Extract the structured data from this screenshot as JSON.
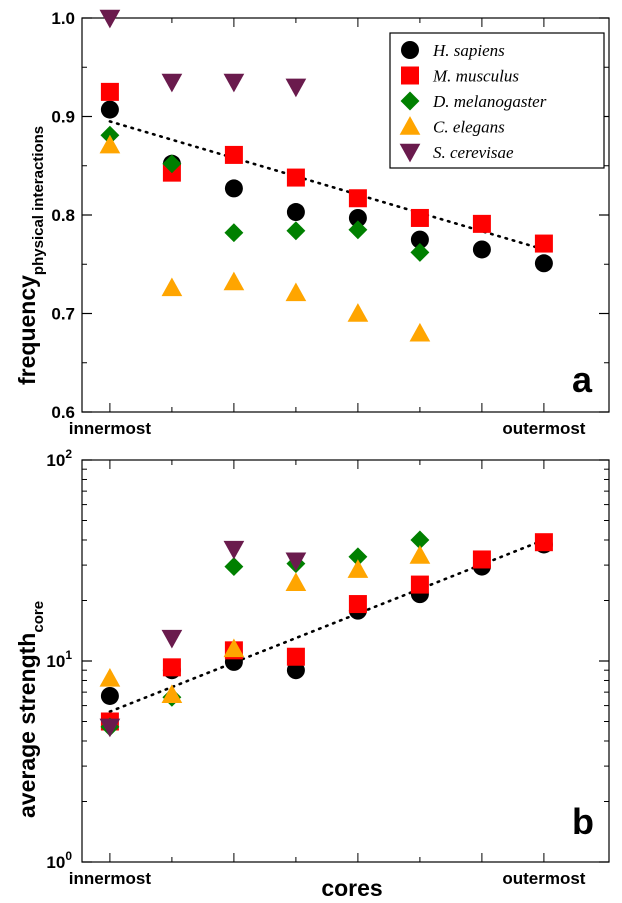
{
  "chart_data": [
    {
      "type": "scatter",
      "panel_label": "a",
      "xlabel": "",
      "ylabel": "frequency",
      "ylabel_subscript": "physical interactions",
      "x_tick_labels": {
        "1": "innermost",
        "8": "outermost"
      },
      "xlim": [
        0.55,
        9.05
      ],
      "ylim": [
        0.6,
        1.0
      ],
      "yscale": "linear",
      "y_ticks": [
        0.6,
        0.7,
        0.8,
        0.9,
        1.0
      ],
      "y_tick_labels": [
        "0.6",
        "0.7",
        "0.8",
        "0.9",
        "1.0"
      ],
      "grid": false,
      "legend_position": "top-right",
      "series": [
        {
          "name": "H. sapiens",
          "marker": "circle",
          "color": "#000000",
          "x": [
            1,
            2,
            3,
            4,
            5,
            6,
            7,
            8
          ],
          "y": [
            0.907,
            0.852,
            0.827,
            0.803,
            0.797,
            0.775,
            0.765,
            0.751
          ]
        },
        {
          "name": "M. musculus",
          "marker": "square",
          "color": "#ff0000",
          "x": [
            1,
            2,
            3,
            4,
            5,
            6,
            7,
            8
          ],
          "y": [
            0.925,
            0.843,
            0.861,
            0.838,
            0.817,
            0.797,
            0.791,
            0.771
          ]
        },
        {
          "name": "D. melanogaster",
          "marker": "diamond",
          "color": "#008000",
          "x": [
            1,
            2,
            3,
            4,
            5,
            6
          ],
          "y": [
            0.881,
            0.852,
            0.782,
            0.784,
            0.785,
            0.762
          ]
        },
        {
          "name": "C. elegans",
          "marker": "triangle-up",
          "color": "#ffa500",
          "x": [
            1,
            2,
            3,
            4,
            5,
            6
          ],
          "y": [
            0.871,
            0.726,
            0.732,
            0.721,
            0.7,
            0.68
          ]
        },
        {
          "name": "S. cerevisae",
          "marker": "triangle-down",
          "color": "#6a1b4d",
          "x": [
            1,
            2,
            3,
            4
          ],
          "y": [
            1.0,
            0.935,
            0.935,
            0.93
          ]
        }
      ],
      "fit_line": {
        "style": "dotted",
        "color": "#000000",
        "x": [
          1,
          8
        ],
        "y": [
          0.895,
          0.765
        ]
      }
    },
    {
      "type": "scatter",
      "panel_label": "b",
      "xlabel": "cores",
      "ylabel": "average strength",
      "ylabel_subscript": "core",
      "x_tick_labels": {
        "1": "innermost",
        "8": "outermost"
      },
      "xlim": [
        0.55,
        9.05
      ],
      "ylim": [
        1,
        100
      ],
      "yscale": "log",
      "y_ticks": [
        1,
        10,
        100
      ],
      "y_tick_labels": [
        {
          "base": "10",
          "exp": "0"
        },
        {
          "base": "10",
          "exp": "1"
        },
        {
          "base": "10",
          "exp": "2"
        }
      ],
      "grid": false,
      "series": [
        {
          "name": "H. sapiens",
          "marker": "circle",
          "color": "#000000",
          "x": [
            1,
            2,
            3,
            4,
            5,
            6,
            7,
            8
          ],
          "y": [
            6.7,
            9.0,
            9.9,
            9.0,
            17.8,
            21.5,
            29.5,
            38.0
          ]
        },
        {
          "name": "M. musculus",
          "marker": "square",
          "color": "#ff0000",
          "x": [
            1,
            2,
            3,
            4,
            5,
            6,
            7,
            8
          ],
          "y": [
            5.0,
            9.3,
            11.3,
            10.5,
            19.2,
            24.0,
            32.0,
            39.0
          ]
        },
        {
          "name": "D. melanogaster",
          "marker": "diamond",
          "color": "#008000",
          "x": [
            1,
            2,
            3,
            4,
            5,
            6
          ],
          "y": [
            4.7,
            6.6,
            29.5,
            30.5,
            33.0,
            40.0
          ]
        },
        {
          "name": "C. elegans",
          "marker": "triangle-up",
          "color": "#ffa500",
          "x": [
            1,
            2,
            3,
            4,
            5,
            6
          ],
          "y": [
            8.2,
            6.8,
            11.5,
            24.5,
            28.5,
            33.5
          ]
        },
        {
          "name": "S. cerevisae",
          "marker": "triangle-down",
          "color": "#6a1b4d",
          "x": [
            1,
            2,
            3,
            4
          ],
          "y": [
            4.7,
            13.0,
            36.0,
            31.5
          ]
        }
      ],
      "fit_line": {
        "style": "dotted",
        "color": "#000000",
        "x": [
          1,
          8
        ],
        "y": [
          5.6,
          40.0
        ]
      }
    }
  ]
}
